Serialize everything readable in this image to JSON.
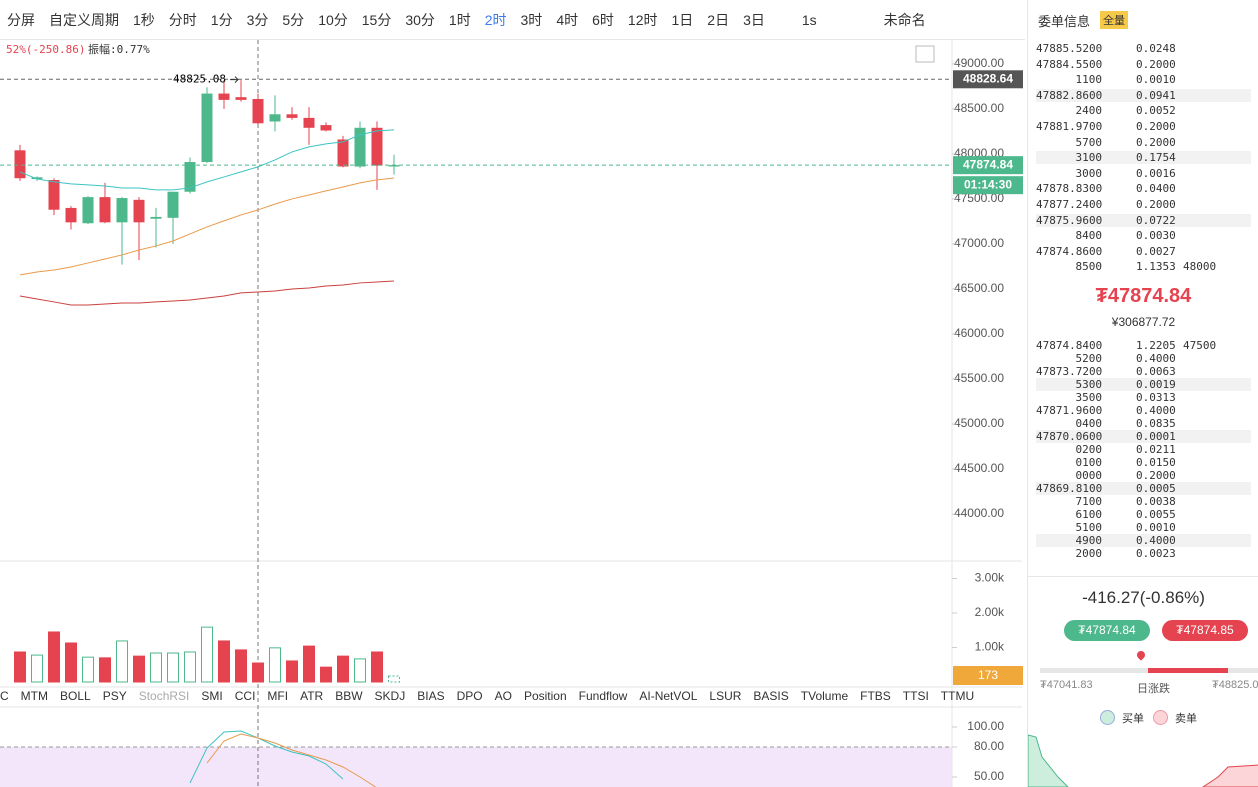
{
  "toolbar": {
    "items": [
      "分屏",
      "自定义周期",
      "1秒",
      "分时",
      "1分",
      "3分",
      "5分",
      "10分",
      "15分",
      "30分",
      "1时",
      "2时",
      "3时",
      "4时",
      "6时",
      "12时",
      "1日",
      "2日",
      "3日",
      "1s",
      "未命名"
    ],
    "active": "2时"
  },
  "chart_info": {
    "change": "52%(-250.86)",
    "amplitude": "振幅:0.77%"
  },
  "chart_data": [
    {
      "type": "candlestick",
      "ylim": [
        43490,
        49265
      ],
      "yticks": [
        {
          "value": 49000,
          "label": "49000.00"
        },
        {
          "value": 48500,
          "label": "48500.00"
        },
        {
          "value": 48000,
          "label": "48000.00"
        },
        {
          "value": 47500,
          "label": "47500.00"
        },
        {
          "value": 47000,
          "label": "47000.00"
        },
        {
          "value": 46500,
          "label": "46500.00"
        },
        {
          "value": 46000,
          "label": "46000.00"
        },
        {
          "value": 45500,
          "label": "45500.00"
        },
        {
          "value": 45000,
          "label": "45000.00"
        },
        {
          "value": 44500,
          "label": "44500.00"
        },
        {
          "value": 44000,
          "label": "44000.00"
        }
      ],
      "up_color": "#4db88c",
      "down_color": "#e5434f",
      "open": [
        48040,
        47720,
        47710,
        47400,
        47230,
        47520,
        47240,
        47490,
        47280,
        47290,
        47580,
        47910,
        48670,
        48630,
        48610,
        48360,
        48440,
        48400,
        48320,
        48160,
        47860,
        48290,
        47860
      ],
      "high": [
        48100,
        47750,
        47730,
        47420,
        47530,
        47680,
        47520,
        47520,
        47400,
        47530,
        47960,
        48740,
        48820,
        48820,
        48670,
        48650,
        48520,
        48520,
        48350,
        48200,
        48360,
        48360,
        47990
      ],
      "low": [
        47700,
        47700,
        47320,
        47160,
        47220,
        47230,
        46770,
        46820,
        46960,
        47000,
        47560,
        47900,
        48500,
        48580,
        48330,
        48250,
        48380,
        48100,
        48250,
        47850,
        47840,
        47600,
        47770
      ],
      "close": [
        47730,
        47740,
        47380,
        47240,
        47520,
        47240,
        47510,
        47240,
        47300,
        47580,
        47910,
        48670,
        48600,
        48600,
        48340,
        48440,
        48400,
        48290,
        48260,
        47860,
        48290,
        47870,
        47875
      ],
      "series": [
        {
          "color": "#3cc3c3",
          "values": [
            47800,
            47722,
            47689,
            47667,
            47656,
            47644,
            47622,
            47622,
            47600,
            47600,
            47622,
            47689,
            47744,
            47800,
            47856,
            47933,
            48022,
            48078,
            48111,
            48133,
            48211,
            48256,
            48267
          ]
        },
        {
          "color": "#e89a4c",
          "values": [
            46656,
            46689,
            46711,
            46744,
            46789,
            46833,
            46878,
            46933,
            46978,
            47033,
            47111,
            47189,
            47256,
            47322,
            47378,
            47444,
            47500,
            47544,
            47589,
            47633,
            47678,
            47711,
            47733
          ]
        },
        {
          "color": "#c9403d",
          "values": [
            46422,
            46389,
            46356,
            46322,
            46322,
            46333,
            46344,
            46344,
            46356,
            46367,
            46378,
            46400,
            46422,
            46456,
            46467,
            46478,
            46500,
            46511,
            46533,
            46544,
            46567,
            46578,
            46589
          ]
        }
      ],
      "high_line": 48828.64,
      "high_mark": {
        "value": 48825.08,
        "label": "48825.08"
      },
      "last_price": 47874.84,
      "countdown": "01:14:30"
    },
    {
      "type": "volume",
      "ylim": [
        0,
        3478
      ],
      "yticks": [
        {
          "value": 3000,
          "label": "3.00k"
        },
        {
          "value": 2000,
          "label": "2.00k"
        },
        {
          "value": 1000,
          "label": "1.00k"
        }
      ],
      "values": [
        870,
        780,
        1450,
        1130,
        720,
        700,
        1190,
        750,
        840,
        840,
        870,
        1590,
        1190,
        930,
        550,
        990,
        610,
        1040,
        430,
        750,
        670,
        870,
        173
      ]
    },
    {
      "type": "line",
      "ylim": [
        40,
        119
      ],
      "yticks": [
        {
          "value": 100,
          "label": "100.00"
        },
        {
          "value": 80,
          "label": "80.00"
        },
        {
          "value": 50,
          "label": "50.00"
        }
      ],
      "band": 80,
      "series": [
        {
          "color": "#3cc3c3",
          "values": [
            null,
            null,
            null,
            null,
            null,
            null,
            null,
            null,
            null,
            null,
            44,
            79,
            95,
            96,
            89,
            81,
            75,
            71,
            63,
            48,
            null,
            null,
            null
          ]
        },
        {
          "color": "#e89a4c",
          "values": [
            null,
            null,
            null,
            null,
            null,
            null,
            null,
            null,
            null,
            null,
            null,
            64,
            86,
            93,
            89,
            84,
            77,
            72,
            67,
            60,
            50,
            39,
            null
          ]
        }
      ]
    }
  ],
  "tabs": [
    "C",
    "MTM",
    "BOLL",
    "PSY",
    "StochRSI",
    "SMI",
    "CCI",
    "MFI",
    "ATR",
    "BBW",
    "SKDJ",
    "BIAS",
    "DPO",
    "AO",
    "Position",
    "Fundflow",
    "AI-NetVOL",
    "LSUR",
    "BASIS",
    "TVolume",
    "FTBS",
    "TTSI",
    "TTMU"
  ],
  "order_book": {
    "title": "委单信息",
    "badge": "全量",
    "asks": [
      [
        "47885.5200",
        "0.0248"
      ],
      [
        "47884.5500",
        "0.2000"
      ],
      [
        "1100",
        "0.0010"
      ],
      [
        "47882.8600",
        "0.0941"
      ],
      [
        "2400",
        "0.0052"
      ],
      [
        "47881.9700",
        "0.2000"
      ],
      [
        "5700",
        "0.2000"
      ],
      [
        "3100",
        "0.1754"
      ],
      [
        "3000",
        "0.0016"
      ],
      [
        "47878.8300",
        "0.0400"
      ],
      [
        "47877.2400",
        "0.2000"
      ],
      [
        "47875.9600",
        "0.0722"
      ],
      [
        "8400",
        "0.0030"
      ],
      [
        "47874.8600",
        "0.0027"
      ],
      [
        "8500",
        "1.1353",
        "48000"
      ]
    ],
    "mid_price": "₮47874.84",
    "mid_cny": "¥306877.72",
    "bids": [
      [
        "47874.8400",
        "1.2205",
        "47500"
      ],
      [
        "5200",
        "0.4000"
      ],
      [
        "47873.7200",
        "0.0063"
      ],
      [
        "5300",
        "0.0019"
      ],
      [
        "3500",
        "0.0313"
      ],
      [
        "47871.9600",
        "0.4000"
      ],
      [
        "0400",
        "0.0835"
      ],
      [
        "47870.0600",
        "0.0001"
      ],
      [
        "0200",
        "0.0211"
      ],
      [
        "0100",
        "0.0150"
      ],
      [
        "0000",
        "0.2000"
      ],
      [
        "47869.8100",
        "0.0005"
      ],
      [
        "7100",
        "0.0038"
      ],
      [
        "6100",
        "0.0055"
      ],
      [
        "5100",
        "0.0010"
      ],
      [
        "4900",
        "0.4000"
      ],
      [
        "2000",
        "0.0023"
      ]
    ],
    "change": "-416.27(-0.86%)",
    "buy_price": "₮47874.84",
    "sell_price": "₮47874.85",
    "range_low": "₮47041.83",
    "range_label": "日涨跌",
    "range_high": "₮48825.0",
    "legend_buy": "买单",
    "legend_sell": "卖单"
  }
}
